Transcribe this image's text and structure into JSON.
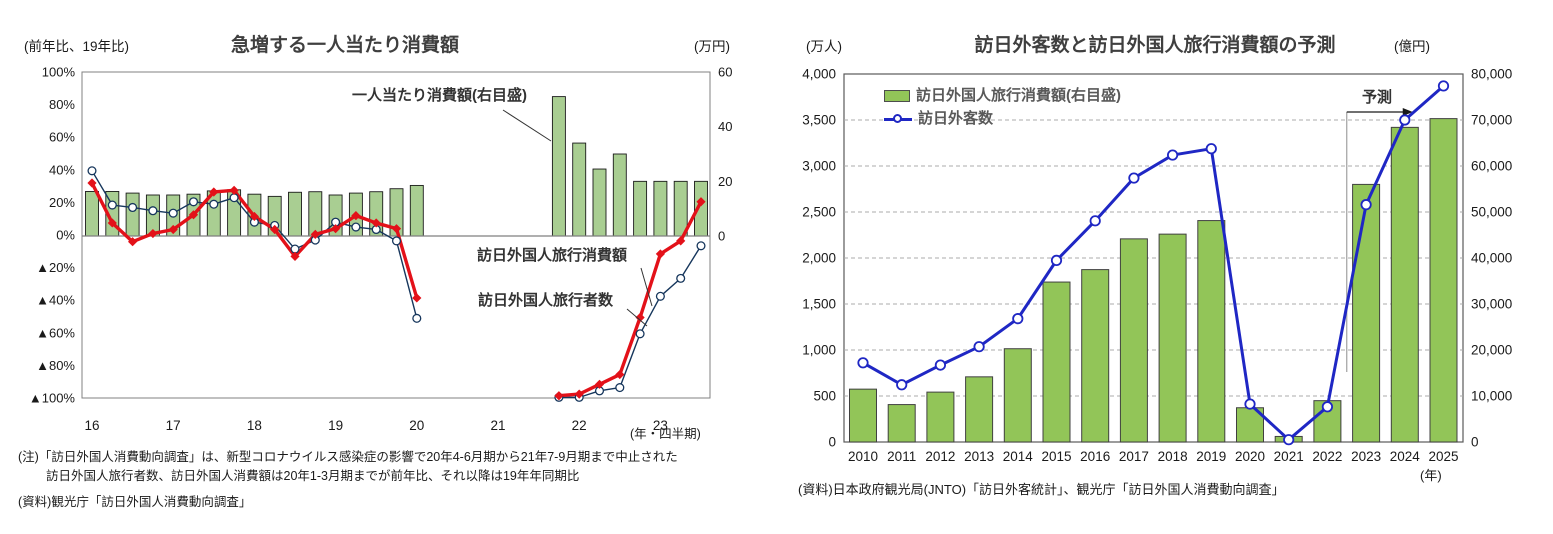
{
  "left": {
    "title": "急増する一人当たり消費額",
    "unit_left": "(前年比、19年比)",
    "unit_right": "(万円)",
    "x_note": "(年・四半期)",
    "ann_bar": "一人当たり消費額(右目盛)",
    "ann_red": "訪日外国人旅行消費額",
    "ann_black": "訪日外国人旅行者数",
    "note1": "(注)「訪日外国人消費動向調査」は、新型コロナウイルス感染症の影響で20年4-6月期から21年7-9月期まで中止された",
    "note2": "訪日外国人旅行者数、訪日外国人消費額は20年1-3月期までが前年比、それ以降は19年年同期比",
    "source": "(資料)観光庁「訪日外国人消費動向調査」"
  },
  "right": {
    "title": "訪日外客数と訪日外国人旅行消費額の予測",
    "unit_left": "(万人)",
    "unit_right": "(億円)",
    "legend_bar": "訪日外国人旅行消費額(右目盛)",
    "legend_line": "訪日外客数",
    "forecast_label": "予測",
    "source": "(資料)日本政府観光局(JNTO)「訪日外客統計」、観光庁「訪日外国人消費動向調査」",
    "x_note": "(年)"
  },
  "chart_data": [
    {
      "id": "per-capita-spending",
      "type": "bar+line",
      "title": "急増する一人当たり消費額",
      "x": [
        "16Q1",
        "16Q2",
        "16Q3",
        "16Q4",
        "17Q1",
        "17Q2",
        "17Q3",
        "17Q4",
        "18Q1",
        "18Q2",
        "18Q3",
        "18Q4",
        "19Q1",
        "19Q2",
        "19Q3",
        "19Q4",
        "20Q1",
        "20Q2",
        "20Q3",
        "20Q4",
        "21Q1",
        "21Q2",
        "21Q3",
        "21Q4",
        "22Q1",
        "22Q2",
        "22Q3",
        "22Q4",
        "23Q1",
        "23Q2",
        "23Q3"
      ],
      "x_tick_labels": [
        "16",
        "17",
        "18",
        "19",
        "20",
        "21",
        "22",
        "23"
      ],
      "x_axis_note": "年・四半期",
      "left_axis": {
        "label": "前年比、19年比",
        "min": -100,
        "max": 100,
        "unit": "%",
        "tick_labels": [
          "100%",
          "80%",
          "60%",
          "40%",
          "20%",
          "0%",
          "▲20%",
          "▲40%",
          "▲60%",
          "▲80%",
          "▲100%"
        ]
      },
      "right_axis": {
        "label": "万円",
        "min": 0,
        "max": 60,
        "tick_labels": [
          "60",
          "40",
          "20",
          "0"
        ]
      },
      "grid": false,
      "gap_note": "no data 20Q2-21Q3 (survey suspended)",
      "series": [
        {
          "name": "一人当たり消費額(右目盛)",
          "type": "bar",
          "axis": "right",
          "color": "#A9CE92",
          "border": "#1a1a1a",
          "values": [
            16.3,
            16.3,
            15.7,
            15.0,
            15.0,
            15.3,
            16.5,
            16.9,
            15.3,
            14.5,
            16.0,
            16.2,
            15.0,
            15.7,
            16.2,
            17.3,
            18.5,
            null,
            null,
            null,
            null,
            null,
            null,
            51.0,
            34.0,
            24.5,
            30.0,
            20.0,
            20.0,
            20.0,
            20.0
          ]
        },
        {
          "name": "訪日外国人旅行消費額",
          "type": "line",
          "axis": "left",
          "color": "#E31119",
          "marker": "diamond",
          "values": [
            32.5,
            8,
            -3.5,
            1.5,
            4,
            13,
            27,
            28,
            12,
            4,
            -12.5,
            1,
            4.5,
            12.5,
            8,
            4.5,
            -38,
            null,
            null,
            null,
            null,
            null,
            null,
            -98,
            -97,
            -91,
            -85,
            -50,
            -11,
            -3,
            21
          ]
        },
        {
          "name": "訪日外国人旅行者数",
          "type": "line",
          "axis": "left",
          "color": "#16365C",
          "marker": "circle-white",
          "values": [
            40,
            19,
            17.5,
            15.5,
            14,
            21,
            19.5,
            23.5,
            8.5,
            6.5,
            -8,
            -2.5,
            8.5,
            5.5,
            4,
            -3,
            -50.5,
            null,
            null,
            null,
            null,
            null,
            null,
            -99,
            -99,
            -95,
            -93,
            -60,
            -37,
            -26,
            -6
          ]
        }
      ]
    },
    {
      "id": "visitors-and-consumption-forecast",
      "type": "bar+line",
      "title": "訪日外客数と訪日外国人旅行消費額の予測",
      "x": [
        "2010",
        "2011",
        "2012",
        "2013",
        "2014",
        "2015",
        "2016",
        "2017",
        "2018",
        "2019",
        "2020",
        "2021",
        "2022",
        "2023",
        "2024",
        "2025"
      ],
      "x_axis_note": "年",
      "left_axis": {
        "label": "万人",
        "min": 0,
        "max": 4000,
        "tick_step": 500,
        "tick_labels": [
          "4,000",
          "3,500",
          "3,000",
          "2,500",
          "2,000",
          "1,500",
          "1,000",
          "500",
          "0"
        ]
      },
      "right_axis": {
        "label": "億円",
        "min": 0,
        "max": 80000,
        "tick_step": 10000,
        "tick_labels": [
          "80,000",
          "70,000",
          "60,000",
          "50,000",
          "40,000",
          "30,000",
          "20,000",
          "10,000",
          "0"
        ]
      },
      "grid": "dashed horizontal",
      "legend_position": "top-left-inside",
      "forecast": {
        "label": "予測",
        "start_category": "2023"
      },
      "series": [
        {
          "name": "訪日外国人旅行消費額(右目盛)",
          "type": "bar",
          "axis": "right",
          "color": "#92C558",
          "border": "#404040",
          "values": [
            11490,
            8135,
            10846,
            14167,
            20278,
            34771,
            37476,
            44162,
            45189,
            48135,
            7446,
            1208,
            8987,
            56000,
            68400,
            70300
          ]
        },
        {
          "name": "訪日外客数",
          "type": "line",
          "axis": "left",
          "color": "#1F27C4",
          "marker": "circle-white",
          "values": [
            861,
            622,
            836,
            1036,
            1341,
            1974,
            2404,
            2869,
            3119,
            3188,
            412,
            25,
            383,
            2580,
            3500,
            3870
          ]
        }
      ]
    }
  ]
}
